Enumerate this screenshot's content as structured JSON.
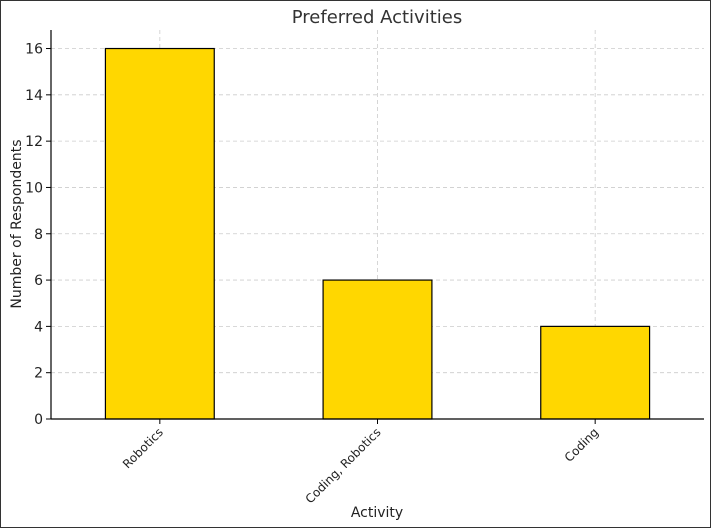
{
  "chart_data": {
    "type": "bar",
    "title": "Preferred Activities",
    "xlabel": "Activity",
    "ylabel": "Number of Respondents",
    "categories": [
      "Robotics",
      "Coding, Robotics",
      "Coding"
    ],
    "values": [
      16,
      6,
      4
    ],
    "ylim": [
      0,
      16.8
    ],
    "yticks": [
      "0",
      "2",
      "4",
      "6",
      "8",
      "10",
      "12",
      "14",
      "16"
    ],
    "grid": true,
    "legend": "none",
    "bar_color": "#FFD700",
    "bar_edge_color": "#000000",
    "grid_color": "#cccccc"
  }
}
